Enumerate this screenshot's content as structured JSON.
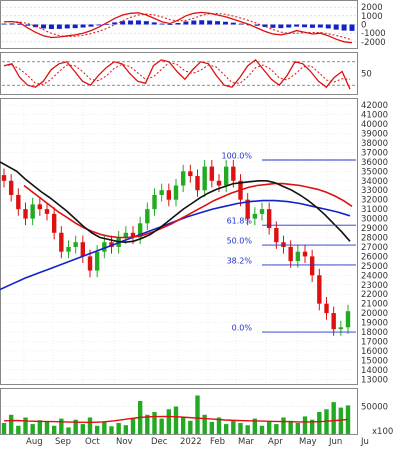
{
  "chart_data": [
    {
      "type": "line",
      "panel": "macd",
      "y_ticks": [
        2000,
        1000,
        0,
        -1000,
        -2000
      ],
      "ylim": [
        -2600,
        2600
      ],
      "grid": true,
      "line_color": "#dd1111",
      "signal_color": "#dd1111",
      "hist_color": "#1122cc",
      "series_values": [
        300,
        350,
        200,
        -400,
        -900,
        -1300,
        -1500,
        -1450,
        -1300,
        -1200,
        -1000,
        -700,
        -300,
        200,
        700,
        1100,
        1300,
        1350,
        1100,
        700,
        300,
        100,
        500,
        1000,
        1300,
        1400,
        1300,
        1100,
        900,
        600,
        300,
        0,
        -400,
        -800,
        -1100,
        -1200,
        -1000,
        -700,
        -900,
        -1100,
        -1000,
        -1300,
        -1700,
        -2000,
        -2100
      ]
    },
    {
      "type": "line",
      "panel": "stochastic",
      "y_ticks": [
        50
      ],
      "ylim": [
        0,
        100
      ],
      "grid": true,
      "levels": [
        20,
        80
      ],
      "line_color": "#dd1111",
      "series_values": [
        70,
        75,
        40,
        20,
        15,
        30,
        60,
        75,
        80,
        55,
        30,
        20,
        45,
        65,
        80,
        75,
        50,
        30,
        25,
        70,
        85,
        80,
        55,
        35,
        60,
        80,
        75,
        45,
        20,
        15,
        40,
        70,
        85,
        60,
        35,
        20,
        45,
        80,
        75,
        55,
        30,
        15,
        40,
        55,
        10
      ]
    },
    {
      "type": "candlestick",
      "panel": "price",
      "y_ticks": [
        13000,
        14000,
        15000,
        16000,
        17000,
        18000,
        19000,
        20000,
        21000,
        22000,
        23000,
        24000,
        25000,
        26000,
        27000,
        28000,
        29000,
        30000,
        31000,
        32000,
        33000,
        34000,
        35000,
        36000,
        37000,
        38000,
        39000,
        40000,
        41000,
        42000
      ],
      "ylim": [
        12500,
        42600
      ],
      "x_labels": [
        "Aug",
        "Sep",
        "Oct",
        "Nov",
        "Dec",
        "2022",
        "Feb",
        "Mar",
        "Apr",
        "May",
        "Jun",
        "Ju"
      ],
      "close": [
        34000,
        32500,
        31000,
        30000,
        31500,
        31000,
        30500,
        28500,
        26500,
        27000,
        27500,
        26000,
        24500,
        26500,
        27500,
        27000,
        28000,
        28500,
        28000,
        29500,
        31000,
        32500,
        33000,
        32000,
        33500,
        35000,
        34500,
        33000,
        35500,
        34000,
        33500,
        35500,
        34000,
        32000,
        30000,
        30500,
        31000,
        29000,
        27500,
        27000,
        25500,
        26500,
        26000,
        24000,
        21000,
        20000,
        18300,
        18500,
        20200
      ],
      "ma_short": [
        36000,
        35500,
        35000,
        34200,
        33500,
        32800,
        32200,
        31500,
        30800,
        30000,
        29200,
        28500,
        28000,
        27800,
        27600,
        27500,
        27600,
        27900,
        28300,
        28900,
        29600,
        30300,
        31000,
        31600,
        32200,
        32700,
        33100,
        33400,
        33700,
        33800,
        33900,
        34000,
        34000,
        33800,
        33400,
        33000,
        32500,
        31900,
        31200,
        30400,
        29500,
        28600,
        27600
      ],
      "ma_mid": [
        33500,
        32800,
        32100,
        31400,
        30700,
        30100,
        29500,
        29000,
        28600,
        28300,
        28100,
        28000,
        28000,
        28100,
        28300,
        28600,
        29000,
        29400,
        29900,
        30400,
        30900,
        31400,
        31900,
        32300,
        32700,
        33000,
        33300,
        33500,
        33600,
        33700,
        33700,
        33600,
        33500,
        33300,
        33100,
        32800,
        32400,
        31900,
        31300
      ],
      "ma_long": [
        22500,
        23100,
        23700,
        24200,
        24700,
        25200,
        25700,
        26200,
        26700,
        27200,
        27700,
        28200,
        28700,
        29200,
        29700,
        30200,
        30600,
        31000,
        31300,
        31600,
        31800,
        31900,
        31900,
        31800,
        31600,
        31300,
        31000,
        30700,
        30300
      ],
      "fibonacci": [
        {
          "label": "100.0%",
          "price": 36200
        },
        {
          "label": "61.8%",
          "price": 29300
        },
        {
          "label": "50.0%",
          "price": 27200
        },
        {
          "label": "38.2%",
          "price": 25100
        },
        {
          "label": "0.0%",
          "price": 18000
        }
      ],
      "colors": {
        "up": "#22aa22",
        "down": "#dd1111",
        "ma_short": "#111111",
        "ma_mid": "#dd1111",
        "ma_long": "#1122cc",
        "fib": "#2233cc"
      }
    },
    {
      "type": "bar",
      "panel": "volume",
      "y_ticks": [
        50000,
        0
      ],
      "ylim": [
        0,
        80000
      ],
      "unit_label": "x100",
      "bar_color": "#22aa22",
      "ma_color": "#dd1111",
      "values": [
        20000,
        35000,
        15000,
        30000,
        18000,
        25000,
        22000,
        15000,
        28000,
        12000,
        26000,
        18000,
        30000,
        15000,
        22000,
        14000,
        20000,
        16000,
        28000,
        60000,
        35000,
        40000,
        28000,
        45000,
        50000,
        30000,
        24000,
        70000,
        35000,
        22000,
        30000,
        18000,
        25000,
        20000,
        16000,
        28000,
        15000,
        22000,
        18000,
        30000,
        24000,
        20000,
        32000,
        26000,
        40000,
        45000,
        58000,
        48000,
        52000
      ],
      "ma_values": [
        24000,
        24500,
        23500,
        23000,
        22500,
        22000,
        21500,
        21000,
        22000,
        24000,
        27000,
        30000,
        31500,
        32000,
        31500,
        30000,
        28500,
        27000,
        25500,
        24500,
        24000,
        23500,
        23000,
        22500,
        22000,
        22000,
        23000,
        24500,
        26500
      ]
    }
  ]
}
